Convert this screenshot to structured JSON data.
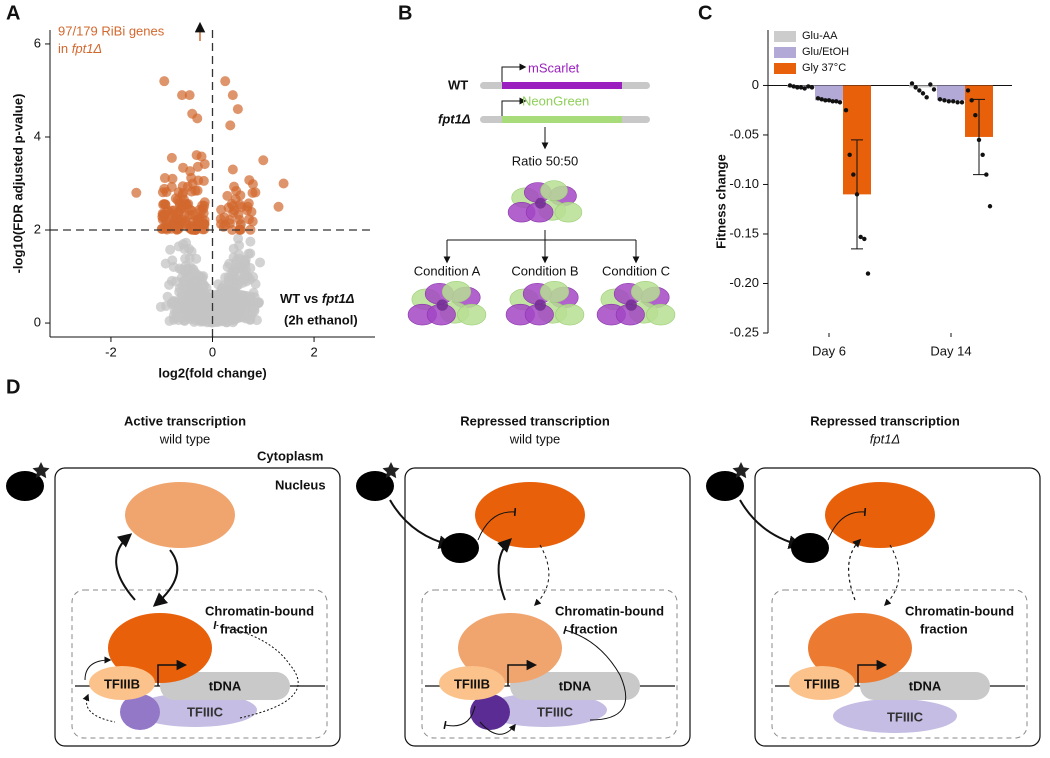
{
  "panel_labels": [
    "A",
    "B",
    "C",
    "D"
  ],
  "panel_a": {
    "type": "scatter",
    "annotation": "97/179 RiBi genes",
    "annotation_in": "in ",
    "annotation_strain": "fpt1Δ",
    "comparison": "WT vs ",
    "comparison_strain": "fpt1Δ",
    "condition": "(2h ethanol)",
    "xlabel": "log2(fold change)",
    "ylabel": "-log10(FDR adjusted p-value)",
    "xlim": [
      -3.2,
      3.2
    ],
    "xticks": [
      -2,
      0,
      2
    ],
    "ylim": [
      -0.3,
      6.3
    ],
    "yticks": [
      0,
      2,
      4,
      6
    ],
    "threshold_y": 2,
    "threshold_x": 0
  },
  "panel_b": {
    "wt": "WT",
    "wt_reporter": "mScarlet",
    "mutant": "fpt1Δ",
    "mutant_reporter": "NeonGreen",
    "ratio": "Ratio 50:50",
    "conditions": [
      "Condition A",
      "Condition B",
      "Condition C"
    ]
  },
  "panel_c": {
    "type": "bar",
    "ylabel": "Fitness change",
    "categories": [
      "Day 6",
      "Day 14"
    ],
    "ylim": [
      -0.25,
      0.056
    ],
    "yticks": [
      0,
      -0.05,
      {
        "value": -0.1,
        "label": "-0.10"
      },
      -0.15,
      {
        "value": -0.2,
        "label": "-0.20"
      },
      -0.25
    ],
    "series": [
      {
        "name": "Glu-AA",
        "color": "#cccccc",
        "values": [
          -0.002,
          -0.002
        ],
        "points": [
          [
            0,
            -0.001,
            -0.002,
            -0.002,
            -0.003,
            -0.001,
            -0.002
          ],
          [
            0.002,
            -0.002,
            -0.005,
            -0.008,
            -0.012,
            0.001,
            -0.004
          ]
        ]
      },
      {
        "name": "Glu/EtOH",
        "color": "#b3a9d6",
        "values": [
          -0.015,
          -0.015
        ],
        "points": [
          [
            -0.013,
            -0.014,
            -0.015,
            -0.015,
            -0.016,
            -0.016,
            -0.017
          ],
          [
            -0.014,
            -0.015,
            -0.016,
            -0.016,
            -0.017,
            -0.017
          ]
        ]
      },
      {
        "name": "Gly 37°C",
        "color": "#e8600a",
        "values": [
          -0.11,
          -0.052
        ],
        "errors": [
          0.055,
          0.038
        ],
        "points": [
          [
            -0.025,
            -0.07,
            -0.09,
            -0.11,
            -0.153,
            -0.155,
            -0.19
          ],
          [
            -0.005,
            -0.015,
            -0.03,
            -0.055,
            -0.07,
            -0.09,
            -0.122
          ]
        ]
      }
    ]
  },
  "panel_d": {
    "panels": [
      {
        "title": "Active transcription",
        "subtitle": "wild type"
      },
      {
        "title": "Repressed transcription",
        "subtitle": "wild type"
      },
      {
        "title": "Repressed transcription",
        "subtitle": "fpt1Δ"
      }
    ],
    "cytoplasm": "Cytoplasm",
    "nucleus": "Nucleus",
    "chromatin_line1": "Chromatin-bound",
    "chromatin_line2": "fraction",
    "tfiiib": "TFIIIB",
    "tdna": "tDNA",
    "tfiiic": "TFIIIC"
  }
}
